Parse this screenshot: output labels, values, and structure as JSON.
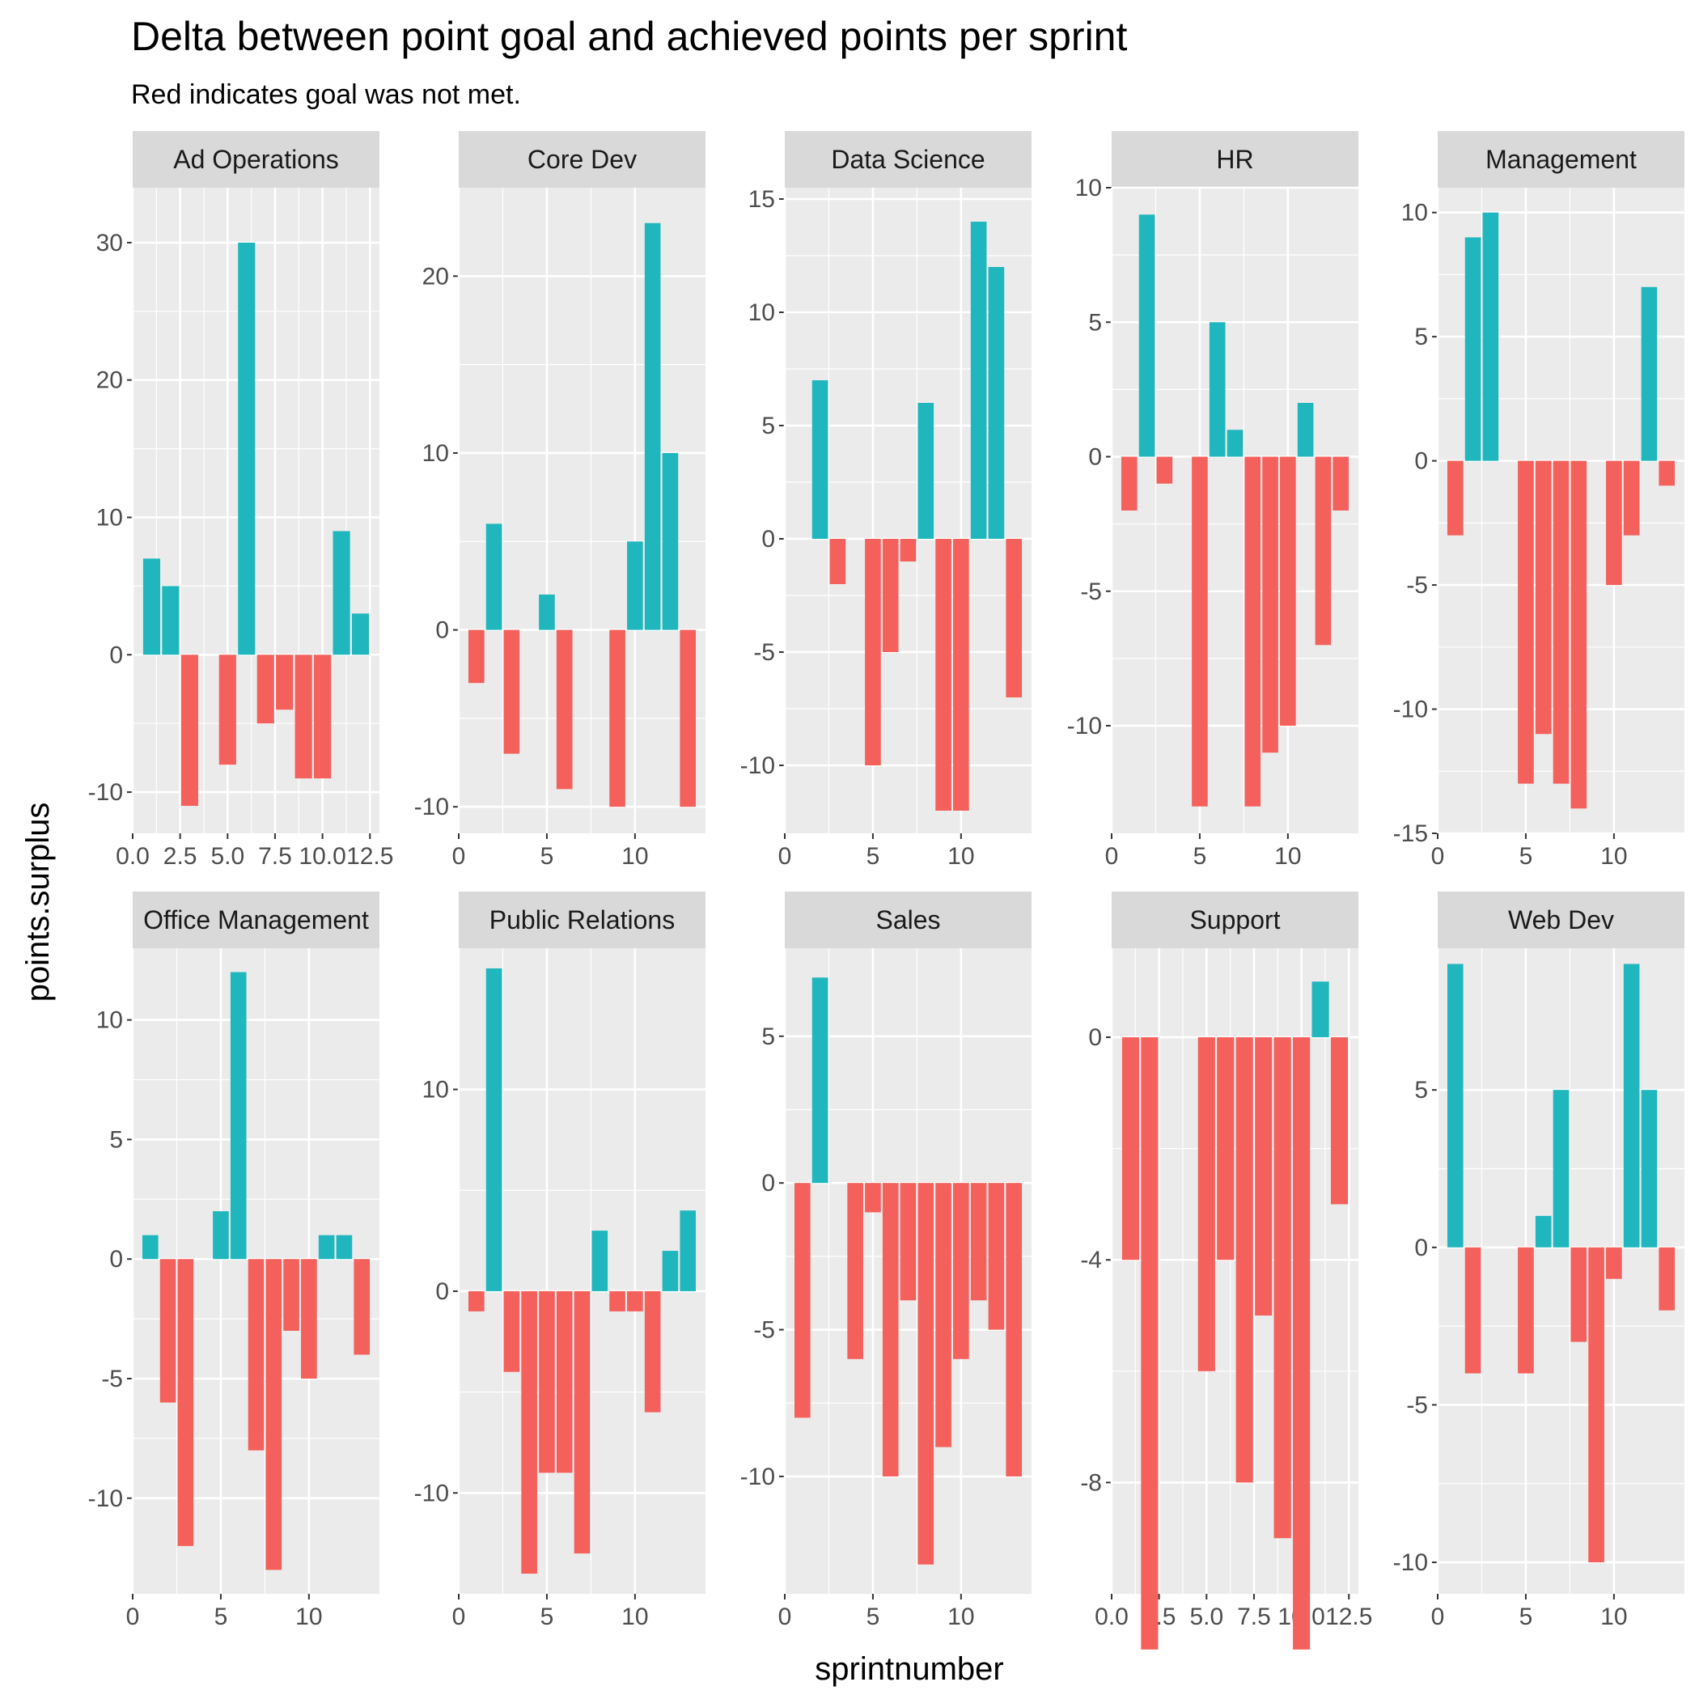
{
  "chart_data": {
    "type": "bar",
    "title": "Delta between point goal and achieved points per sprint",
    "subtitle": "Red indicates goal was not met.",
    "xlabel": "sprintnumber",
    "ylabel": "points.surplus",
    "colors": {
      "met": "#1fb7bd",
      "not_met": "#f4605b",
      "panel": "#ebebeb",
      "grid": "#ffffff",
      "strip": "#d9d9d9"
    },
    "grid": true,
    "facets": [
      {
        "name": "Ad Operations",
        "ylim": [
          -13,
          34
        ],
        "yticks": [
          -10,
          0,
          10,
          20,
          30
        ],
        "xlim": [
          0,
          13
        ],
        "xticks": [
          0,
          2.5,
          5,
          7.5,
          10,
          12.5
        ],
        "xtick_labels": [
          "0.0",
          "2.5",
          "5.0",
          "7.5",
          "10.0",
          "12.5"
        ],
        "x": [
          1,
          2,
          3,
          5,
          6,
          7,
          8,
          9,
          10,
          11,
          12
        ],
        "values": [
          7,
          5,
          -11,
          -8,
          30,
          -5,
          -4,
          -9,
          -9,
          9,
          3
        ]
      },
      {
        "name": "Core Dev",
        "ylim": [
          -11.5,
          25
        ],
        "yticks": [
          -10,
          0,
          10,
          20
        ],
        "xlim": [
          0,
          14
        ],
        "xticks": [
          0,
          5,
          10
        ],
        "xtick_labels": [
          "0",
          "5",
          "10"
        ],
        "x": [
          1,
          2,
          3,
          5,
          6,
          9,
          10,
          11,
          12,
          13
        ],
        "values": [
          -3,
          6,
          -7,
          2,
          -9,
          -10,
          5,
          23,
          10,
          -10
        ]
      },
      {
        "name": "Data Science",
        "ylim": [
          -13,
          15.5
        ],
        "yticks": [
          -10,
          -5,
          0,
          5,
          10,
          15
        ],
        "xlim": [
          0,
          14
        ],
        "xticks": [
          0,
          5,
          10
        ],
        "xtick_labels": [
          "0",
          "5",
          "10"
        ],
        "x": [
          2,
          3,
          5,
          6,
          7,
          8,
          9,
          10,
          11,
          12,
          13
        ],
        "values": [
          7,
          -2,
          -10,
          -5,
          -1,
          6,
          -12,
          -12,
          14,
          12,
          -7
        ]
      },
      {
        "name": "HR",
        "ylim": [
          -14,
          10
        ],
        "yticks": [
          -10,
          -5,
          0,
          5,
          10
        ],
        "xlim": [
          0,
          14
        ],
        "xticks": [
          0,
          5,
          10
        ],
        "xtick_labels": [
          "0",
          "5",
          "10"
        ],
        "x": [
          1,
          2,
          3,
          5,
          6,
          7,
          8,
          9,
          10,
          11,
          12,
          13
        ],
        "values": [
          -2,
          9,
          -1,
          -13,
          5,
          1,
          -13,
          -11,
          -10,
          2,
          -7,
          -2
        ]
      },
      {
        "name": "Management",
        "ylim": [
          -15,
          11
        ],
        "yticks": [
          -15,
          -10,
          -5,
          0,
          5,
          10
        ],
        "xlim": [
          0,
          14
        ],
        "xticks": [
          0,
          5,
          10
        ],
        "xtick_labels": [
          "0",
          "5",
          "10"
        ],
        "x": [
          1,
          2,
          3,
          5,
          6,
          7,
          8,
          10,
          11,
          12,
          13
        ],
        "values": [
          -3,
          9,
          10,
          -13,
          -11,
          -13,
          -14,
          -5,
          -3,
          7,
          -1
        ]
      },
      {
        "name": "Office Management",
        "ylim": [
          -14,
          13
        ],
        "yticks": [
          -10,
          -5,
          0,
          5,
          10
        ],
        "xlim": [
          0,
          14
        ],
        "xticks": [
          0,
          5,
          10
        ],
        "xtick_labels": [
          "0",
          "5",
          "10"
        ],
        "x": [
          1,
          2,
          3,
          5,
          6,
          7,
          8,
          9,
          10,
          11,
          12,
          13
        ],
        "values": [
          1,
          -6,
          -12,
          2,
          12,
          -8,
          -13,
          -3,
          -5,
          1,
          1,
          -4
        ]
      },
      {
        "name": "Public Relations",
        "ylim": [
          -15,
          17
        ],
        "yticks": [
          -10,
          0,
          10
        ],
        "xlim": [
          0,
          14
        ],
        "xticks": [
          0,
          5,
          10
        ],
        "xtick_labels": [
          "0",
          "5",
          "10"
        ],
        "x": [
          1,
          2,
          3,
          4,
          5,
          6,
          7,
          8,
          9,
          10,
          11,
          12,
          13
        ],
        "values": [
          -1,
          16,
          -4,
          -14,
          -9,
          -9,
          -13,
          3,
          -1,
          -1,
          -6,
          2,
          4
        ]
      },
      {
        "name": "Sales",
        "ylim": [
          -14,
          8
        ],
        "yticks": [
          -10,
          -5,
          0,
          5
        ],
        "xlim": [
          0,
          14
        ],
        "xticks": [
          0,
          5,
          10
        ],
        "xtick_labels": [
          "0",
          "5",
          "10"
        ],
        "x": [
          1,
          2,
          4,
          5,
          6,
          7,
          8,
          9,
          10,
          11,
          12,
          13
        ],
        "values": [
          -8,
          7,
          -6,
          -1,
          -10,
          -4,
          -13,
          -9,
          -6,
          -4,
          -5,
          -10
        ]
      },
      {
        "name": "Support",
        "ylim": [
          -10,
          1.6
        ],
        "yticks": [
          -8,
          -4,
          0
        ],
        "xlim": [
          0,
          13
        ],
        "xticks": [
          0,
          2.5,
          5,
          7.5,
          10,
          12.5
        ],
        "xtick_labels": [
          "0.0",
          "2.5",
          "5.0",
          "7.5",
          "10.0",
          "12.5"
        ],
        "x": [
          1,
          2,
          5,
          6,
          7,
          8,
          9,
          10,
          11,
          12
        ],
        "values": [
          -4,
          -11,
          -6,
          -4,
          -8,
          -5,
          -9,
          -11,
          1,
          -3
        ]
      },
      {
        "name": "Web Dev",
        "ylim": [
          -11,
          9.5
        ],
        "yticks": [
          -10,
          -5,
          0,
          5
        ],
        "xlim": [
          0,
          14
        ],
        "xticks": [
          0,
          5,
          10
        ],
        "xtick_labels": [
          "0",
          "5",
          "10"
        ],
        "x": [
          1,
          2,
          5,
          6,
          7,
          8,
          9,
          10,
          11,
          12,
          13
        ],
        "values": [
          9,
          -4,
          -4,
          1,
          5,
          -3,
          -10,
          -1,
          9,
          5,
          -2
        ]
      }
    ]
  }
}
